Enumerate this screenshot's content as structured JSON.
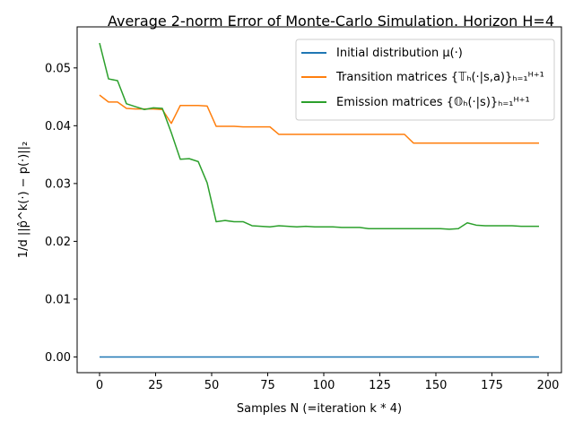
{
  "chart_data": {
    "type": "line",
    "title": "Average 2-norm Error of Monte-Carlo Simulation. Horizon H=4",
    "xlabel": "Samples N (=iteration k * 4)",
    "ylabel": "1/d ||p̂^k(·) − p(·)||₂",
    "xlim": [
      -10,
      206
    ],
    "ylim": [
      -0.00272,
      0.0571
    ],
    "x_ticks": [
      0,
      25,
      50,
      75,
      100,
      125,
      150,
      175,
      200
    ],
    "y_ticks": [
      0.0,
      0.01,
      0.02,
      0.03,
      0.04,
      0.05
    ],
    "y_tick_labels": [
      "0.00",
      "0.01",
      "0.02",
      "0.03",
      "0.04",
      "0.05"
    ],
    "grid": false,
    "legend_position": "top-right",
    "x": [
      0,
      4,
      8,
      12,
      16,
      20,
      24,
      28,
      32,
      36,
      40,
      44,
      48,
      52,
      56,
      60,
      64,
      68,
      72,
      76,
      80,
      84,
      88,
      92,
      96,
      100,
      104,
      108,
      112,
      116,
      120,
      124,
      128,
      132,
      136,
      140,
      144,
      148,
      152,
      156,
      160,
      164,
      168,
      172,
      176,
      180,
      184,
      188,
      192,
      196
    ],
    "series": [
      {
        "name": "Initial distribution μ(·)",
        "color": "#1f77b4",
        "values": [
          0,
          0,
          0,
          0,
          0,
          0,
          0,
          0,
          0,
          0,
          0,
          0,
          0,
          0,
          0,
          0,
          0,
          0,
          0,
          0,
          0,
          0,
          0,
          0,
          0,
          0,
          0,
          0,
          0,
          0,
          0,
          0,
          0,
          0,
          0,
          0,
          0,
          0,
          0,
          0,
          0,
          0,
          0,
          0,
          0,
          0,
          0,
          0,
          0,
          0
        ]
      },
      {
        "name": "Transition matrices {𝕋ₕ(·|s,a)}ₕ₌₁ᴴ⁺¹",
        "color": "#ff7f0e",
        "values": [
          0.0453,
          0.0441,
          0.0441,
          0.043,
          0.0429,
          0.0429,
          0.0429,
          0.0428,
          0.0404,
          0.0435,
          0.0435,
          0.0435,
          0.0434,
          0.0399,
          0.0399,
          0.0399,
          0.0398,
          0.0398,
          0.0398,
          0.0398,
          0.0385,
          0.0385,
          0.0385,
          0.0385,
          0.0385,
          0.0385,
          0.0385,
          0.0385,
          0.0385,
          0.0385,
          0.0385,
          0.0385,
          0.0385,
          0.0385,
          0.0385,
          0.037,
          0.037,
          0.037,
          0.037,
          0.037,
          0.037,
          0.037,
          0.037,
          0.037,
          0.037,
          0.037,
          0.037,
          0.037,
          0.037,
          0.037
        ]
      },
      {
        "name": "Emission matrices {𝕆ₕ(·|s)}ₕ₌₁ᴴ⁺¹",
        "color": "#2ca02c",
        "values": [
          0.0543,
          0.0481,
          0.0478,
          0.0438,
          0.0433,
          0.0428,
          0.0431,
          0.043,
          0.0388,
          0.0342,
          0.0343,
          0.0338,
          0.0301,
          0.0234,
          0.0236,
          0.0234,
          0.0234,
          0.0227,
          0.0226,
          0.0225,
          0.0227,
          0.0226,
          0.0225,
          0.0226,
          0.0225,
          0.0225,
          0.0225,
          0.0224,
          0.0224,
          0.0224,
          0.0222,
          0.0222,
          0.0222,
          0.0222,
          0.0222,
          0.0222,
          0.0222,
          0.0222,
          0.0222,
          0.0221,
          0.0222,
          0.0232,
          0.0228,
          0.0227,
          0.0227,
          0.0227,
          0.0227,
          0.0226,
          0.0226,
          0.0226
        ]
      }
    ]
  }
}
